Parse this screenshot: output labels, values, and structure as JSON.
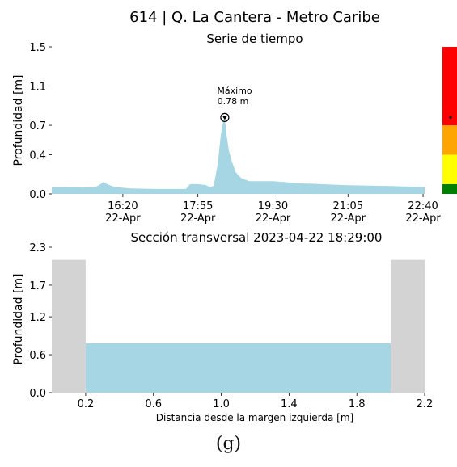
{
  "figure": {
    "title": "614 | Q. La Cantera - Metro Caribe",
    "caption": "(g)"
  },
  "chart_data": [
    {
      "type": "area",
      "title": "Serie de tiempo",
      "ylabel": "Profundidad [m]",
      "xlabel": "",
      "ylim": [
        0.0,
        1.5
      ],
      "yticks": [
        "0.0",
        "0.4",
        "0.7",
        "1.1",
        "1.5"
      ],
      "xlim": [
        "14:50",
        "22:42"
      ],
      "xticks": [
        {
          "time": "16:20",
          "date": "22-Apr"
        },
        {
          "time": "17:55",
          "date": "22-Apr"
        },
        {
          "time": "19:30",
          "date": "22-Apr"
        },
        {
          "time": "21:05",
          "date": "22-Apr"
        },
        {
          "time": "22:40",
          "date": "22-Apr"
        }
      ],
      "series": [
        {
          "color": "#a6d6e3",
          "x": [
            "14:50",
            "15:10",
            "15:30",
            "15:45",
            "15:50",
            "15:55",
            "16:00",
            "16:10",
            "16:30",
            "17:00",
            "17:30",
            "17:40",
            "17:45",
            "17:55",
            "18:05",
            "18:10",
            "18:15",
            "18:20",
            "18:24",
            "18:27",
            "18:29",
            "18:31",
            "18:34",
            "18:38",
            "18:43",
            "18:50",
            "19:00",
            "19:15",
            "19:30",
            "19:45",
            "20:00",
            "20:30",
            "21:00",
            "21:30",
            "22:00",
            "22:20",
            "22:42"
          ],
          "y": [
            0.07,
            0.07,
            0.065,
            0.07,
            0.09,
            0.12,
            0.1,
            0.07,
            0.055,
            0.05,
            0.05,
            0.05,
            0.1,
            0.1,
            0.09,
            0.07,
            0.08,
            0.3,
            0.6,
            0.74,
            0.78,
            0.62,
            0.45,
            0.33,
            0.22,
            0.16,
            0.13,
            0.13,
            0.13,
            0.12,
            0.11,
            0.1,
            0.09,
            0.085,
            0.08,
            0.075,
            0.07
          ]
        }
      ],
      "annotation": {
        "label": "Máximo",
        "value_text": "0.78 m",
        "x": "18:29",
        "y": 0.78
      },
      "alert_bar": {
        "bands": [
          {
            "color": "#008000",
            "from": 0.0,
            "to": 0.1
          },
          {
            "color": "#ffff00",
            "from": 0.1,
            "to": 0.4
          },
          {
            "color": "#ffa500",
            "from": 0.4,
            "to": 0.7
          },
          {
            "color": "#ff0000",
            "from": 0.7,
            "to": 1.5
          }
        ],
        "marker_value": 0.78
      },
      "grid": false
    },
    {
      "type": "area",
      "title": "Sección transversal 2023-04-22 18:29:00",
      "ylabel": "Profundidad [m]",
      "xlabel": "Distancia desde la margen izquierda [m]",
      "xlim": [
        0.0,
        2.2
      ],
      "ylim": [
        0.0,
        2.3
      ],
      "xticks": [
        "0.2",
        "0.6",
        "1.0",
        "1.4",
        "1.8",
        "2.2"
      ],
      "yticks": [
        "0.0",
        "0.6",
        "1.2",
        "1.7",
        "2.3"
      ],
      "banks": [
        {
          "color": "#d3d3d3",
          "x_from": 0.0,
          "x_to": 0.2,
          "height": 2.1
        },
        {
          "color": "#d3d3d3",
          "x_from": 2.0,
          "x_to": 2.2,
          "height": 2.1
        }
      ],
      "water": {
        "color": "#a6d6e3",
        "x_from": 0.2,
        "x_to": 2.0,
        "depth": 0.78
      },
      "grid": false
    }
  ]
}
